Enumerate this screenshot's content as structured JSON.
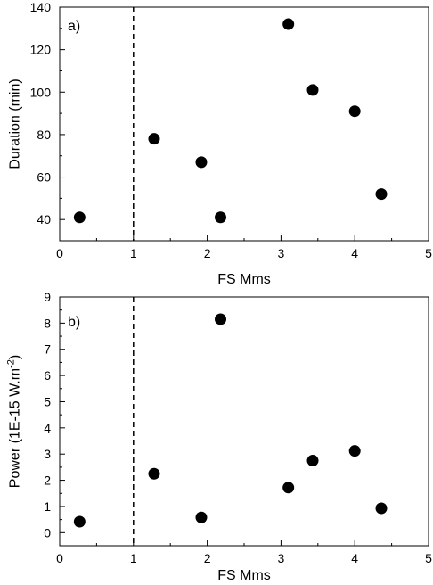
{
  "chart_data": [
    {
      "type": "scatter",
      "panel_label": "a)",
      "xlabel": "FS Mms",
      "ylabel": "Duration (min)",
      "xlim": [
        0,
        5
      ],
      "ylim": [
        30,
        140
      ],
      "xticks": [
        0,
        1,
        2,
        3,
        4,
        5
      ],
      "yticks": [
        40,
        60,
        80,
        100,
        120,
        140
      ],
      "grid": false,
      "reference_line_x": 1,
      "points": [
        {
          "x": 0.27,
          "y": 41
        },
        {
          "x": 1.28,
          "y": 78
        },
        {
          "x": 1.92,
          "y": 67
        },
        {
          "x": 2.18,
          "y": 41
        },
        {
          "x": 3.1,
          "y": 132
        },
        {
          "x": 3.43,
          "y": 101
        },
        {
          "x": 4.0,
          "y": 91
        },
        {
          "x": 4.36,
          "y": 52
        }
      ]
    },
    {
      "type": "scatter",
      "panel_label": "b)",
      "xlabel": "FS Mms",
      "ylabel_main": "Power (1E-15 W.m",
      "ylabel_sup": "-2",
      "ylabel_end": ")",
      "xlim": [
        0,
        5
      ],
      "ylim": [
        -0.5,
        9
      ],
      "xticks": [
        0,
        1,
        2,
        3,
        4,
        5
      ],
      "yticks": [
        0,
        1,
        2,
        3,
        4,
        5,
        6,
        7,
        8,
        9
      ],
      "grid": false,
      "reference_line_x": 1,
      "points": [
        {
          "x": 0.27,
          "y": 0.42
        },
        {
          "x": 1.28,
          "y": 2.25
        },
        {
          "x": 1.92,
          "y": 0.58
        },
        {
          "x": 2.18,
          "y": 8.15
        },
        {
          "x": 3.1,
          "y": 1.72
        },
        {
          "x": 3.43,
          "y": 2.75
        },
        {
          "x": 4.0,
          "y": 3.12
        },
        {
          "x": 4.36,
          "y": 0.93
        }
      ]
    }
  ]
}
